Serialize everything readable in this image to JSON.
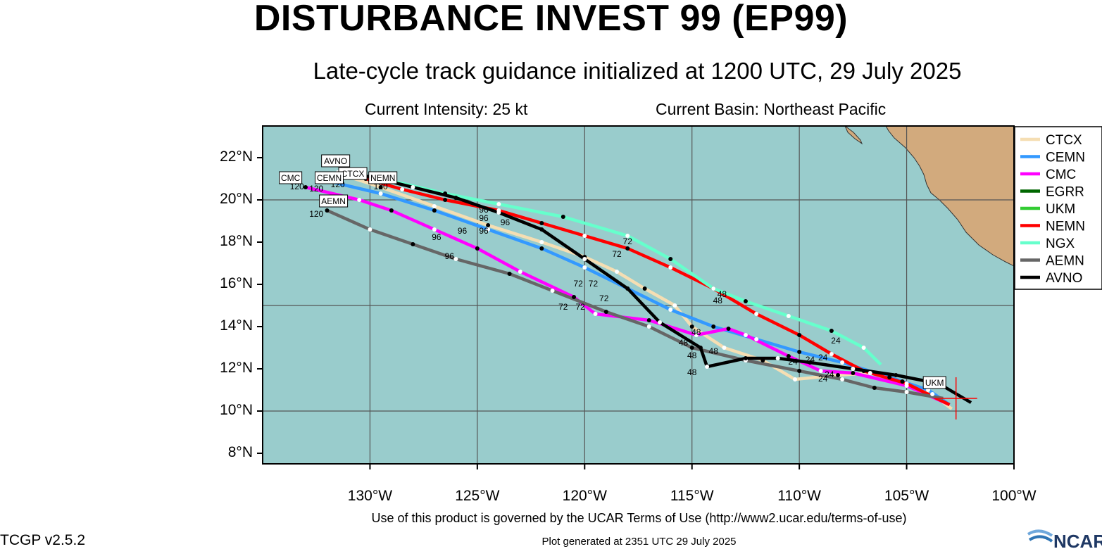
{
  "header": {
    "title": "DISTURBANCE INVEST 99 (EP99)",
    "subtitle": "Late-cycle track guidance initialized at 1200 UTC, 29 July 2025",
    "intensity": "Current Intensity: 25 kt",
    "basin": "Current Basin: Northeast Pacific"
  },
  "footer": {
    "terms": "Use of this product is governed by the UCAR Terms of Use (http://www2.ucar.edu/terms-of-use)",
    "version": "TCGP v2.5.2",
    "generated": "Plot generated at 2351 UTC   29 July 2025",
    "logo_text": "NCAR"
  },
  "colors": {
    "ocean": "#99cccc",
    "land": "#d2aa7d",
    "grid": "#555555",
    "current_position": "#ff0000"
  },
  "chart_data": {
    "type": "map",
    "lon_range": [
      -135,
      -100
    ],
    "lat_range": [
      7.5,
      23.5
    ],
    "lon_ticks": [
      -130,
      -125,
      -120,
      -115,
      -110,
      -105,
      -100
    ],
    "lon_tick_labels": [
      "130°W",
      "125°W",
      "120°W",
      "115°W",
      "110°W",
      "105°W",
      "100°W"
    ],
    "lat_ticks": [
      8,
      10,
      12,
      14,
      16,
      18,
      20,
      22
    ],
    "lat_tick_labels": [
      "8°N",
      "10°N",
      "12°N",
      "14°N",
      "16°N",
      "18°N",
      "20°N",
      "22°N"
    ],
    "grid_lons": [
      -130,
      -125,
      -120,
      -115,
      -110,
      -105
    ],
    "grid_lats": [
      10,
      15,
      20
    ],
    "current_position": {
      "lon": -102.7,
      "lat": 10.6
    },
    "legend_position": "top-right",
    "legend": [
      "CTCX",
      "CEMN",
      "CMC",
      "EGRR",
      "UKM",
      "NEMN",
      "NGX",
      "AEMN",
      "AVNO"
    ],
    "series": [
      {
        "name": "CTCX",
        "color": "#f5deb3",
        "label": "CTCX",
        "points": [
          [
            -102.9,
            10.1
          ],
          [
            -103.8,
            10.8
          ],
          [
            -105.2,
            11.4
          ],
          [
            -106.7,
            11.8
          ],
          [
            -108.2,
            11.7
          ],
          [
            -110.2,
            11.5
          ],
          [
            -111.7,
            12.4
          ],
          [
            -113.5,
            13.0
          ],
          [
            -115.0,
            14.0
          ],
          [
            -115.8,
            15.0
          ],
          [
            -117.2,
            15.8
          ],
          [
            -118.5,
            16.6
          ],
          [
            -120.0,
            17.3
          ],
          [
            -122.0,
            18.0
          ],
          [
            -124.5,
            18.8
          ],
          [
            -127.0,
            19.7
          ],
          [
            -129.5,
            20.6
          ],
          [
            -131.0,
            21.1
          ]
        ],
        "label_lonlat": [
          -130.8,
          21.2
        ]
      },
      {
        "name": "CEMN",
        "color": "#3399ff",
        "label": "CEMN",
        "points": [
          [
            -103.0,
            10.3
          ],
          [
            -104.0,
            11.0
          ],
          [
            -105.8,
            11.6
          ],
          [
            -108.0,
            12.3
          ],
          [
            -110.0,
            12.8
          ],
          [
            -112.0,
            13.4
          ],
          [
            -114.0,
            14.0
          ],
          [
            -116.0,
            14.8
          ],
          [
            -118.0,
            15.8
          ],
          [
            -120.0,
            16.8
          ],
          [
            -122.0,
            17.7
          ],
          [
            -124.5,
            18.6
          ],
          [
            -127.0,
            19.5
          ],
          [
            -129.5,
            20.3
          ],
          [
            -132.0,
            20.9
          ]
        ],
        "label_lonlat": [
          -131.9,
          21.0
        ]
      },
      {
        "name": "CMC",
        "color": "#ff00ff",
        "label": "CMC",
        "points": [
          [
            -103.0,
            10.3
          ],
          [
            -105.0,
            11.2
          ],
          [
            -107.5,
            11.8
          ],
          [
            -109.0,
            11.9
          ],
          [
            -110.5,
            12.6
          ],
          [
            -112.5,
            13.6
          ],
          [
            -113.3,
            13.9
          ],
          [
            -114.8,
            13.6
          ],
          [
            -117.0,
            14.3
          ],
          [
            -119.5,
            14.6
          ],
          [
            -120.5,
            15.4
          ],
          [
            -123.0,
            16.6
          ],
          [
            -125.0,
            17.7
          ],
          [
            -127.0,
            18.6
          ],
          [
            -129.0,
            19.5
          ],
          [
            -130.5,
            20.0
          ],
          [
            -133.0,
            20.6
          ]
        ],
        "label_lonlat": [
          -133.7,
          21.0
        ]
      },
      {
        "name": "EGRR",
        "color": "#006600",
        "label": "",
        "points": []
      },
      {
        "name": "UKM",
        "color": "#33cc33",
        "label": "UKM",
        "points": [],
        "label_lonlat": [
          -103.7,
          11.3
        ]
      },
      {
        "name": "NEMN",
        "color": "#ff0000",
        "label": "NEMN",
        "points": [
          [
            -103.0,
            10.3
          ],
          [
            -105.0,
            11.3
          ],
          [
            -107.0,
            11.9
          ],
          [
            -108.5,
            12.7
          ],
          [
            -110.0,
            13.6
          ],
          [
            -112.0,
            14.6
          ],
          [
            -114.0,
            15.8
          ],
          [
            -116.0,
            16.8
          ],
          [
            -118.0,
            17.7
          ],
          [
            -120.0,
            18.3
          ],
          [
            -122.0,
            18.9
          ],
          [
            -124.0,
            19.5
          ],
          [
            -126.5,
            20.0
          ],
          [
            -128.5,
            20.5
          ],
          [
            -130.2,
            21.0
          ]
        ],
        "label_lonlat": [
          -129.4,
          21.0
        ]
      },
      {
        "name": "NGX",
        "color": "#66ffcc",
        "label": "",
        "points": [
          [
            -106.2,
            12.2
          ],
          [
            -107.0,
            13.0
          ],
          [
            -108.5,
            13.8
          ],
          [
            -110.5,
            14.5
          ],
          [
            -112.5,
            15.2
          ],
          [
            -114.0,
            15.8
          ],
          [
            -116.0,
            17.2
          ],
          [
            -118.0,
            18.3
          ],
          [
            -121.0,
            19.2
          ],
          [
            -124.0,
            19.8
          ],
          [
            -126.5,
            20.3
          ],
          [
            -129.0,
            20.9
          ]
        ]
      },
      {
        "name": "AEMN",
        "color": "#666666",
        "label": "AEMN",
        "points": [
          [
            -103.3,
            10.6
          ],
          [
            -105.0,
            10.9
          ],
          [
            -106.5,
            11.1
          ],
          [
            -108.0,
            11.5
          ],
          [
            -110.0,
            11.9
          ],
          [
            -112.5,
            12.4
          ],
          [
            -115.0,
            13.0
          ],
          [
            -117.0,
            14.0
          ],
          [
            -119.0,
            14.7
          ],
          [
            -121.5,
            15.7
          ],
          [
            -123.5,
            16.5
          ],
          [
            -126.0,
            17.2
          ],
          [
            -128.0,
            17.9
          ],
          [
            -130.0,
            18.6
          ],
          [
            -132.0,
            19.5
          ]
        ],
        "label_lonlat": [
          -131.7,
          19.9
        ]
      },
      {
        "name": "AVNO",
        "color": "#000000",
        "label": "AVNO",
        "points": [
          [
            -102.0,
            10.4
          ],
          [
            -103.5,
            11.3
          ],
          [
            -105.5,
            11.7
          ],
          [
            -107.5,
            12.0
          ],
          [
            -109.5,
            12.3
          ],
          [
            -111.0,
            12.5
          ],
          [
            -112.5,
            12.5
          ],
          [
            -114.3,
            12.1
          ],
          [
            -114.6,
            13.0
          ],
          [
            -116.5,
            14.2
          ],
          [
            -118.0,
            15.8
          ],
          [
            -120.0,
            17.2
          ],
          [
            -122.0,
            18.6
          ],
          [
            -124.0,
            19.4
          ],
          [
            -126.0,
            20.1
          ],
          [
            -128.0,
            20.6
          ],
          [
            -130.0,
            21.1
          ],
          [
            -131.5,
            21.3
          ]
        ],
        "label_lonlat": [
          -131.6,
          21.8
        ]
      }
    ],
    "hour_labels": [
      {
        "text": "120",
        "lon": -133.4,
        "lat": 20.5
      },
      {
        "text": "120",
        "lon": -132.5,
        "lat": 20.4
      },
      {
        "text": "120",
        "lon": -131.5,
        "lat": 20.6
      },
      {
        "text": "120",
        "lon": -129.5,
        "lat": 20.5
      },
      {
        "text": "120",
        "lon": -132.5,
        "lat": 19.2
      },
      {
        "text": "96",
        "lon": -126.9,
        "lat": 18.1
      },
      {
        "text": "96",
        "lon": -125.7,
        "lat": 18.4
      },
      {
        "text": "96",
        "lon": -124.7,
        "lat": 18.4
      },
      {
        "text": "96",
        "lon": -124.7,
        "lat": 19.0
      },
      {
        "text": "96",
        "lon": -124.7,
        "lat": 19.4
      },
      {
        "text": "96",
        "lon": -123.7,
        "lat": 18.8
      },
      {
        "text": "96",
        "lon": -126.3,
        "lat": 17.2
      },
      {
        "text": "72",
        "lon": -118.0,
        "lat": 17.9
      },
      {
        "text": "72",
        "lon": -118.5,
        "lat": 17.3
      },
      {
        "text": "72",
        "lon": -120.3,
        "lat": 15.9
      },
      {
        "text": "72",
        "lon": -119.6,
        "lat": 15.9
      },
      {
        "text": "72",
        "lon": -119.1,
        "lat": 15.2
      },
      {
        "text": "72",
        "lon": -121.0,
        "lat": 14.8
      },
      {
        "text": "72",
        "lon": -120.2,
        "lat": 14.8
      },
      {
        "text": "48",
        "lon": -113.6,
        "lat": 15.4
      },
      {
        "text": "48",
        "lon": -113.8,
        "lat": 15.1
      },
      {
        "text": "48",
        "lon": -114.8,
        "lat": 13.6
      },
      {
        "text": "48",
        "lon": -115.4,
        "lat": 13.1
      },
      {
        "text": "48",
        "lon": -114.0,
        "lat": 12.7
      },
      {
        "text": "48",
        "lon": -115.0,
        "lat": 12.5
      },
      {
        "text": "48",
        "lon": -115.0,
        "lat": 11.7
      },
      {
        "text": "24",
        "lon": -108.3,
        "lat": 13.2
      },
      {
        "text": "24",
        "lon": -108.9,
        "lat": 12.4
      },
      {
        "text": "24",
        "lon": -109.5,
        "lat": 12.3
      },
      {
        "text": "24",
        "lon": -108.6,
        "lat": 11.6
      },
      {
        "text": "24",
        "lon": -108.9,
        "lat": 11.4
      },
      {
        "text": "24",
        "lon": -110.3,
        "lat": 12.2
      }
    ],
    "land_label": ""
  }
}
